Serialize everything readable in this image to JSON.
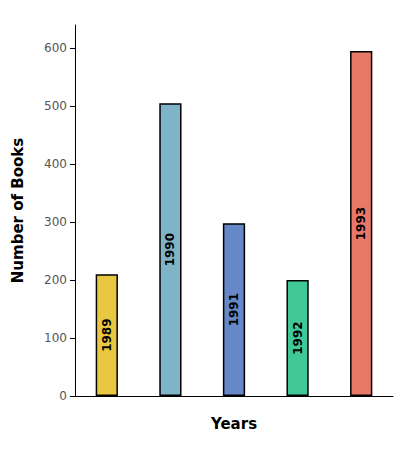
{
  "chart_data": {
    "type": "bar",
    "categories": [
      "1989",
      "1990",
      "1991",
      "1992",
      "1993"
    ],
    "values": [
      210,
      505,
      298,
      200,
      595
    ],
    "colors": [
      "#E8C840",
      "#7FB3C8",
      "#6688C8",
      "#40C898",
      "#E87868"
    ],
    "xlabel": "Years",
    "ylabel": "Number of Books",
    "ylim": [
      0,
      640
    ],
    "yticks": [
      0,
      100,
      200,
      300,
      400,
      500,
      600
    ],
    "grid": false,
    "tick_labels": "y"
  }
}
